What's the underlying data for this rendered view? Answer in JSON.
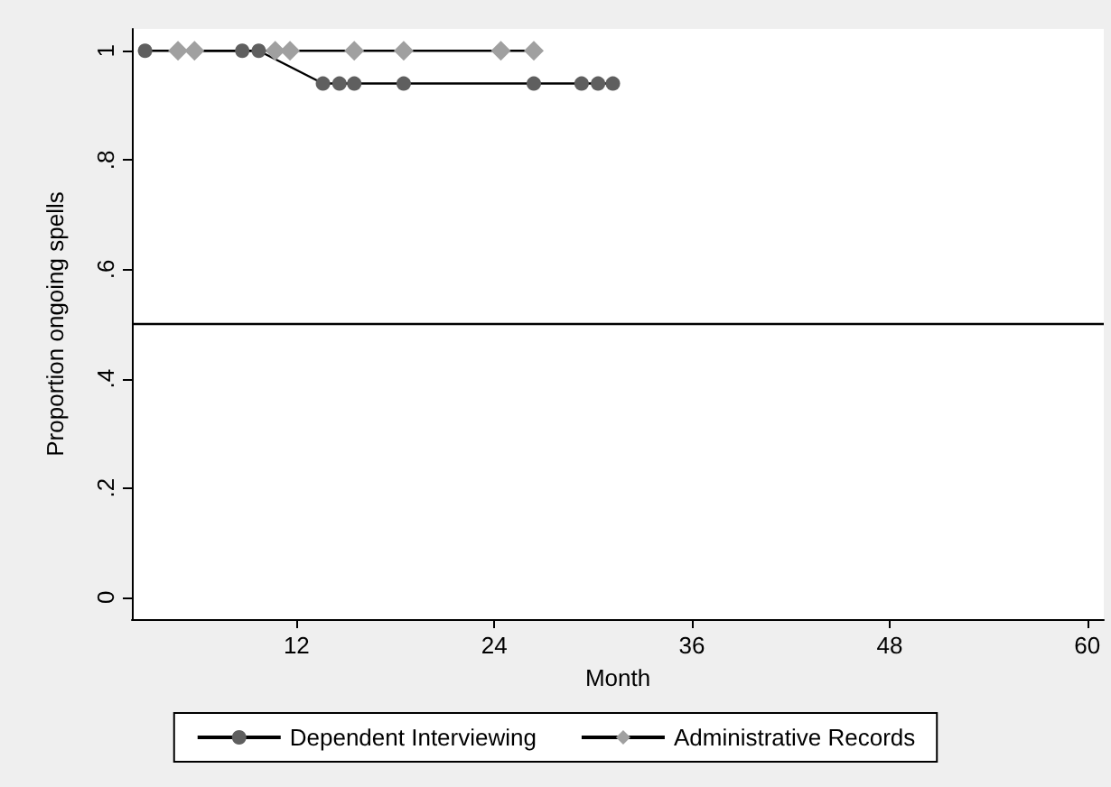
{
  "chart_data": {
    "type": "line",
    "xlabel": "Month",
    "ylabel": "Proportion ongoing spells",
    "xlim": [
      2,
      61
    ],
    "xticks": [
      12,
      24,
      36,
      48,
      60
    ],
    "ylim": [
      -0.04,
      1.04
    ],
    "yticks": [
      0,
      {
        "value": 0.2,
        "label": ".2"
      },
      {
        "value": 0.4,
        "label": ".4"
      },
      {
        "value": 0.6,
        "label": ".6"
      },
      {
        "value": 0.8,
        "label": ".8"
      },
      1
    ],
    "grid": false,
    "legend": "bottom",
    "line_style": "solid",
    "ref_lines": [
      {
        "axis": "y",
        "value": 0.5,
        "color": "#000000"
      }
    ],
    "series": [
      {
        "name": "Dependent Interviewing",
        "color": "#5f5f5f",
        "marker": "circle",
        "x": [
          2.8,
          8.7,
          9.7,
          13.6,
          14.6,
          15.5,
          18.5,
          26.4,
          29.3,
          30.3,
          31.2
        ],
        "values": [
          1,
          1,
          1,
          0.94,
          0.94,
          0.94,
          0.94,
          0.94,
          0.94,
          0.94,
          0.94
        ]
      },
      {
        "name": "Administrative Records",
        "color": "#a0a0a0",
        "marker": "diamond",
        "x": [
          4.8,
          5.8,
          10.7,
          11.6,
          15.5,
          18.5,
          24.4,
          26.4
        ],
        "values": [
          1,
          1,
          1,
          1,
          1,
          1,
          1,
          1
        ]
      }
    ]
  }
}
